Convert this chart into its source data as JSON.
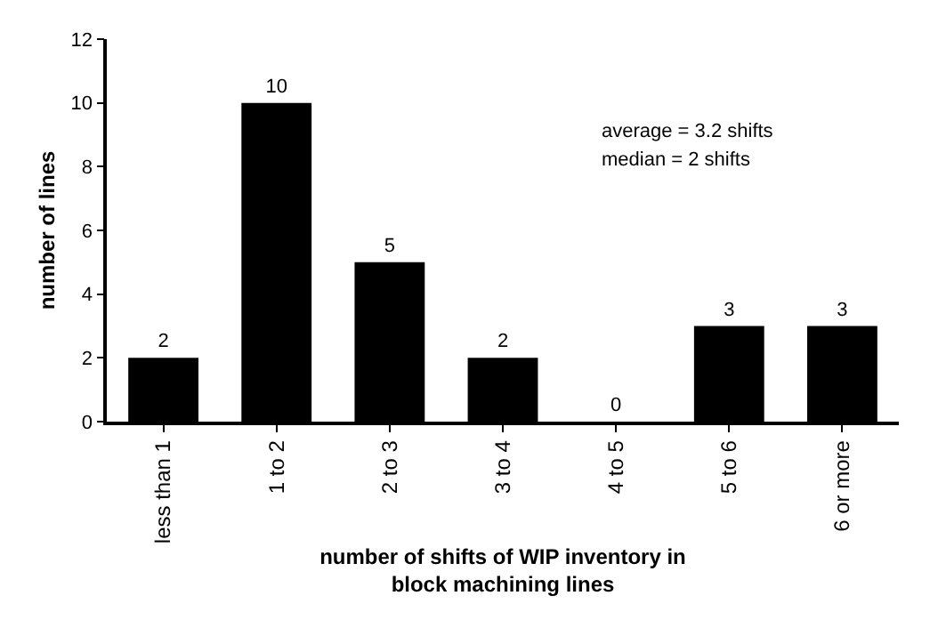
{
  "chart_data": {
    "type": "bar",
    "xlabel": "number of shifts of WIP inventory in block machining lines",
    "ylabel": "number of lines",
    "categories": [
      "less than 1",
      "1 to 2",
      "2 to 3",
      "3 to 4",
      "4 to 5",
      "5 to 6",
      "6 or more"
    ],
    "values": [
      2,
      10,
      5,
      2,
      0,
      3,
      3
    ],
    "color": "#000000",
    "ylim": [
      0,
      12
    ],
    "yticks": [
      0,
      2,
      4,
      6,
      8,
      10,
      12
    ],
    "data_labels": true,
    "annotations": [
      "average = 3.2 shifts",
      "median = 2 shifts"
    ]
  }
}
